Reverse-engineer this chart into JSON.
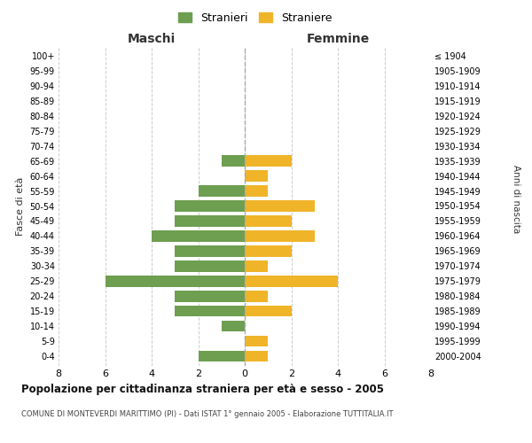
{
  "age_groups": [
    "0-4",
    "5-9",
    "10-14",
    "15-19",
    "20-24",
    "25-29",
    "30-34",
    "35-39",
    "40-44",
    "45-49",
    "50-54",
    "55-59",
    "60-64",
    "65-69",
    "70-74",
    "75-79",
    "80-84",
    "85-89",
    "90-94",
    "95-99",
    "100+"
  ],
  "birth_years": [
    "2000-2004",
    "1995-1999",
    "1990-1994",
    "1985-1989",
    "1980-1984",
    "1975-1979",
    "1970-1974",
    "1965-1969",
    "1960-1964",
    "1955-1959",
    "1950-1954",
    "1945-1949",
    "1940-1944",
    "1935-1939",
    "1930-1934",
    "1925-1929",
    "1920-1924",
    "1915-1919",
    "1910-1914",
    "1905-1909",
    "≤ 1904"
  ],
  "maschi": [
    2,
    0,
    1,
    3,
    3,
    6,
    3,
    3,
    4,
    3,
    3,
    2,
    0,
    1,
    0,
    0,
    0,
    0,
    0,
    0,
    0
  ],
  "femmine": [
    1,
    1,
    0,
    2,
    1,
    4,
    1,
    2,
    3,
    2,
    3,
    1,
    1,
    2,
    0,
    0,
    0,
    0,
    0,
    0,
    0
  ],
  "color_maschi": "#6e9e50",
  "color_femmine": "#f0b429",
  "title_main": "Popolazione per cittadinanza straniera per età e sesso - 2005",
  "title_sub": "COMUNE DI MONTEVERDI MARITTIMO (PI) - Dati ISTAT 1° gennaio 2005 - Elaborazione TUTTITALIA.IT",
  "ylabel_left": "Fasce di età",
  "ylabel_right": "Anni di nascita",
  "xlabel_left": "Maschi",
  "xlabel_right": "Femmine",
  "legend_maschi": "Stranieri",
  "legend_femmine": "Straniere",
  "xlim": 8,
  "background_color": "#ffffff",
  "grid_color": "#cccccc"
}
